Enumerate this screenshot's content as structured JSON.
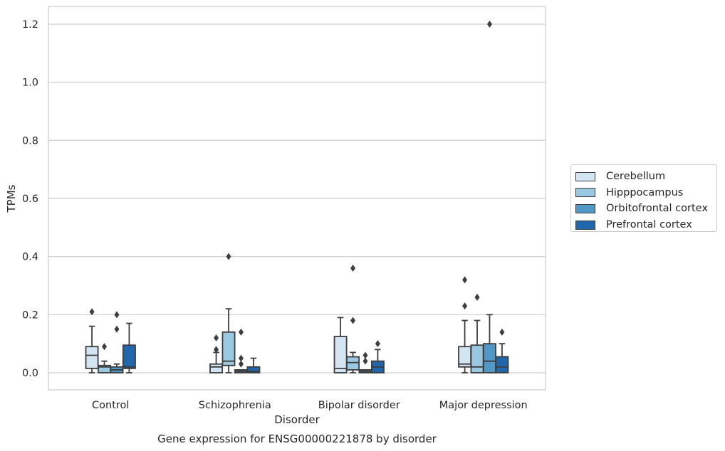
{
  "chart_data": {
    "type": "box",
    "title": "Gene expression for ENSG00000221878 by disorder",
    "xlabel": "Disorder",
    "ylabel": "TPMs",
    "ylim": [
      -0.06,
      1.26
    ],
    "yticks": [
      "0.0",
      "0.2",
      "0.4",
      "0.6",
      "0.8",
      "1.0",
      "1.2"
    ],
    "grid": true,
    "legend_position": "right",
    "categories": [
      "Control",
      "Schizophrenia",
      "Bipolar disorder",
      "Major depression"
    ],
    "series": [
      {
        "name": "Cerebellum",
        "color": "#d3e4f3",
        "boxes": [
          {
            "whislo": 0.0,
            "q1": 0.015,
            "med": 0.06,
            "q3": 0.09,
            "whishi": 0.16,
            "fliers": [
              0.21
            ]
          },
          {
            "whislo": 0.0,
            "q1": 0.0,
            "med": 0.02,
            "q3": 0.03,
            "whishi": 0.07,
            "fliers": [
              0.08,
              0.12
            ]
          },
          {
            "whislo": 0.0,
            "q1": 0.0,
            "med": 0.015,
            "q3": 0.125,
            "whishi": 0.19,
            "fliers": []
          },
          {
            "whislo": 0.0,
            "q1": 0.02,
            "med": 0.03,
            "q3": 0.09,
            "whishi": 0.18,
            "fliers": [
              0.23,
              0.32
            ]
          }
        ]
      },
      {
        "name": "Hipppocampus",
        "color": "#9ac8e0",
        "boxes": [
          {
            "whislo": 0.0,
            "q1": 0.0,
            "med": 0.02,
            "q3": 0.025,
            "whishi": 0.04,
            "fliers": [
              0.09
            ]
          },
          {
            "whislo": 0.0,
            "q1": 0.025,
            "med": 0.04,
            "q3": 0.14,
            "whishi": 0.22,
            "fliers": [
              0.4
            ]
          },
          {
            "whislo": 0.0,
            "q1": 0.01,
            "med": 0.035,
            "q3": 0.055,
            "whishi": 0.07,
            "fliers": [
              0.18,
              0.36
            ]
          },
          {
            "whislo": 0.0,
            "q1": 0.0,
            "med": 0.02,
            "q3": 0.095,
            "whishi": 0.18,
            "fliers": [
              0.26
            ]
          }
        ]
      },
      {
        "name": "Orbitofrontal cortex",
        "color": "#5298c6",
        "boxes": [
          {
            "whislo": 0.0,
            "q1": 0.0,
            "med": 0.01,
            "q3": 0.02,
            "whishi": 0.03,
            "fliers": [
              0.15,
              0.2
            ]
          },
          {
            "whislo": 0.0,
            "q1": 0.0,
            "med": 0.005,
            "q3": 0.01,
            "whishi": 0.01,
            "fliers": [
              0.03,
              0.05,
              0.14
            ]
          },
          {
            "whislo": 0.0,
            "q1": 0.0,
            "med": 0.005,
            "q3": 0.01,
            "whishi": 0.01,
            "fliers": [
              0.04,
              0.06
            ]
          },
          {
            "whislo": 0.0,
            "q1": 0.0,
            "med": 0.04,
            "q3": 0.1,
            "whishi": 0.2,
            "fliers": [
              1.2
            ]
          }
        ]
      },
      {
        "name": "Prefrontal cortex",
        "color": "#2067ac",
        "boxes": [
          {
            "whislo": 0.0,
            "q1": 0.015,
            "med": 0.02,
            "q3": 0.095,
            "whishi": 0.17,
            "fliers": []
          },
          {
            "whislo": 0.0,
            "q1": 0.0,
            "med": 0.005,
            "q3": 0.02,
            "whishi": 0.05,
            "fliers": []
          },
          {
            "whislo": 0.0,
            "q1": 0.0,
            "med": 0.02,
            "q3": 0.04,
            "whishi": 0.08,
            "fliers": [
              0.1
            ]
          },
          {
            "whislo": 0.0,
            "q1": 0.0,
            "med": 0.02,
            "q3": 0.055,
            "whishi": 0.1,
            "fliers": [
              0.14
            ]
          }
        ]
      }
    ]
  }
}
